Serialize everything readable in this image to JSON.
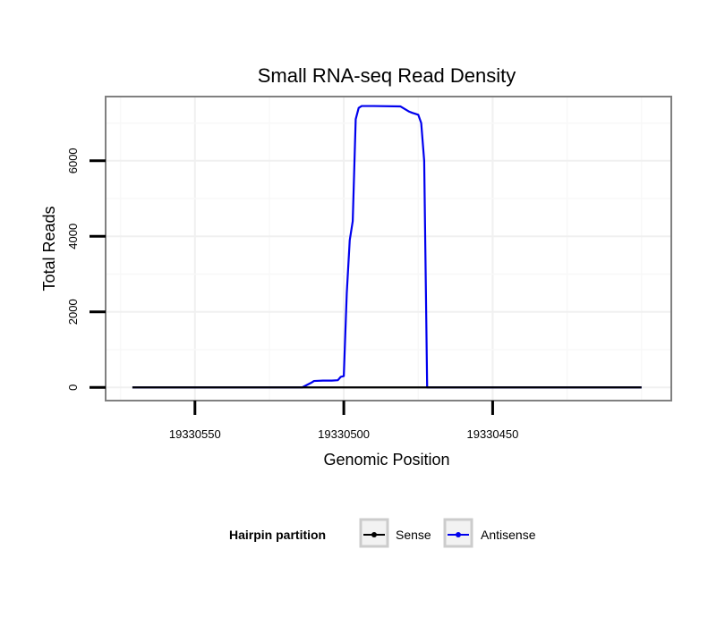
{
  "chart_data": {
    "type": "line",
    "title": "Small RNA-seq Read Density",
    "xlabel": "Genomic Position",
    "ylabel": "Total Reads",
    "xlim": [
      19330580,
      19330390
    ],
    "ylim": [
      -350,
      7700
    ],
    "x_ticks": [
      19330550,
      19330500,
      19330450
    ],
    "x_tick_labels": [
      "19330550",
      "19330500",
      "19330450"
    ],
    "y_ticks": [
      0,
      2000,
      4000,
      6000
    ],
    "y_tick_labels": [
      "0",
      "2000",
      "4000",
      "6000"
    ],
    "grid": true,
    "legend_position": "bottom",
    "legend_title": "Hairpin partition",
    "series": [
      {
        "name": "Sense",
        "color": "#000000",
        "x": [
          19330571,
          19330400
        ],
        "y": [
          0,
          0
        ]
      },
      {
        "name": "Antisense",
        "color": "#0000ee",
        "x": [
          19330571,
          19330514,
          19330511,
          19330510,
          19330507,
          19330504,
          19330502,
          19330501,
          19330500,
          19330499,
          19330498,
          19330497,
          19330496,
          19330495,
          19330494,
          19330493,
          19330490,
          19330481,
          19330478,
          19330477,
          19330475,
          19330474,
          19330473,
          19330472,
          19330400
        ],
        "y": [
          0,
          0,
          120,
          170,
          180,
          180,
          190,
          280,
          300,
          2500,
          3900,
          4400,
          7100,
          7400,
          7450,
          7450,
          7450,
          7440,
          7300,
          7270,
          7220,
          7000,
          6000,
          0,
          0
        ]
      }
    ]
  }
}
